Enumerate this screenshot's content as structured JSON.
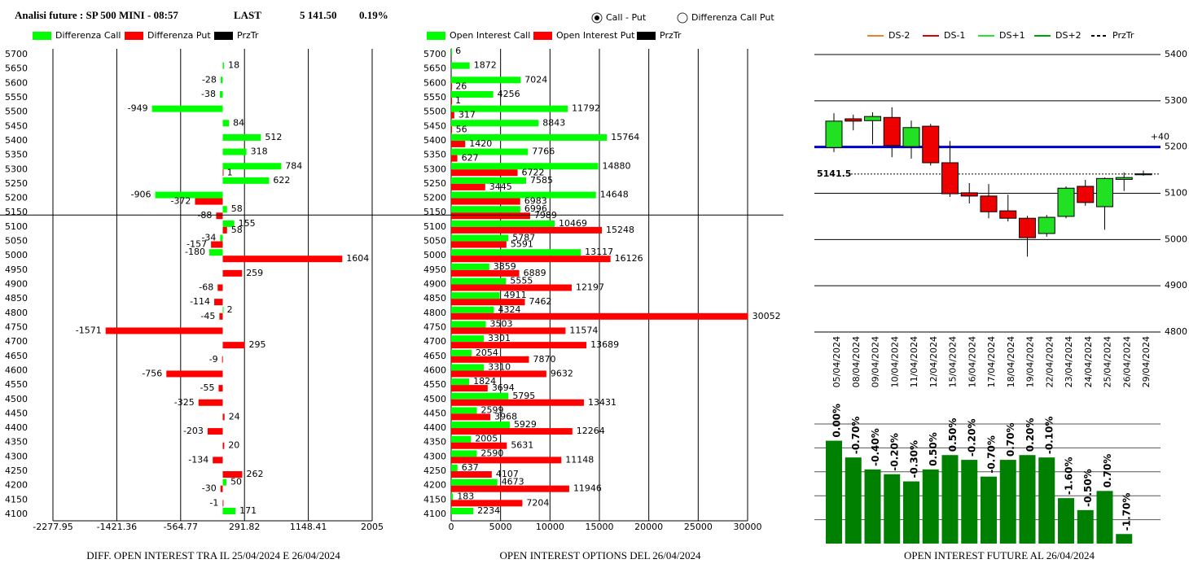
{
  "header": {
    "title": "Analisi future : SP 500 MINI - 08:57",
    "last_caption": "LAST",
    "last": {
      "value": 5141.5,
      "label": "5 141.50"
    },
    "change": "0.19%",
    "options": [
      "Call - Put",
      "Differenza Call Put"
    ],
    "selected": 0
  },
  "chart_data": [
    {
      "type": "hbar",
      "title": "DIFF. OPEN INTEREST TRA IL 25/04/2024 E 26/04/2024",
      "categories": [
        5700,
        5650,
        5600,
        5550,
        5500,
        5450,
        5400,
        5350,
        5300,
        5250,
        5200,
        5150,
        5100,
        5050,
        5000,
        4950,
        4900,
        4850,
        4800,
        4750,
        4700,
        4650,
        4600,
        4550,
        4500,
        4450,
        4400,
        4350,
        4300,
        4250,
        4200,
        4150,
        4100
      ],
      "series": [
        {
          "name": "Differenza Call",
          "color": "#00ff00",
          "values": [
            null,
            18,
            -28,
            -38,
            -949,
            84,
            512,
            318,
            784,
            622,
            -906,
            58,
            155,
            -34,
            -180,
            null,
            null,
            null,
            2,
            null,
            null,
            null,
            null,
            null,
            null,
            null,
            null,
            null,
            null,
            null,
            50,
            null,
            171
          ]
        },
        {
          "name": "Differenza Put",
          "color": "#ff0000",
          "values": [
            null,
            null,
            null,
            null,
            null,
            null,
            null,
            null,
            1,
            null,
            -372,
            -88,
            58,
            -157,
            1604,
            259,
            -68,
            -114,
            -45,
            -1571,
            295,
            -9,
            -756,
            -55,
            -325,
            24,
            -203,
            20,
            -134,
            262,
            -30,
            -1,
            null
          ]
        }
      ],
      "legend_extra": {
        "name": "PrzTr",
        "color": "#000000"
      },
      "xlim": [
        -2277.95,
        2005
      ],
      "xticks": [
        -2277.95,
        -1421.36,
        -564.77,
        291.82,
        1148.41,
        2005
      ],
      "grid": true
    },
    {
      "type": "hbar",
      "title": "OPEN INTEREST OPTIONS DEL 26/04/2024",
      "categories": [
        5700,
        5650,
        5600,
        5550,
        5500,
        5450,
        5400,
        5350,
        5300,
        5250,
        5200,
        5150,
        5100,
        5050,
        5000,
        4950,
        4900,
        4850,
        4800,
        4750,
        4700,
        4650,
        4600,
        4550,
        4500,
        4450,
        4400,
        4350,
        4300,
        4250,
        4200,
        4150,
        4100
      ],
      "series": [
        {
          "name": "Open Interest Call",
          "color": "#00ff00",
          "values": [
            6,
            1872,
            7024,
            4256,
            11792,
            8843,
            15764,
            7766,
            14880,
            7585,
            14648,
            6996,
            10469,
            5787,
            13117,
            3859,
            5555,
            4911,
            4324,
            3503,
            3301,
            2054,
            3310,
            1824,
            5795,
            2599,
            5929,
            2005,
            2590,
            637,
            4673,
            183,
            2234
          ]
        },
        {
          "name": "Open Interest Put",
          "color": "#ff0000",
          "values": [
            null,
            null,
            26,
            1,
            317,
            56,
            1420,
            627,
            6722,
            3445,
            6983,
            7989,
            15248,
            5591,
            16126,
            6889,
            12197,
            7462,
            30052,
            11574,
            13689,
            7870,
            9632,
            3694,
            13431,
            3968,
            12264,
            5631,
            11148,
            4107,
            11946,
            7204,
            null
          ]
        }
      ],
      "legend_extra": {
        "name": "PrzTr",
        "color": "#000000"
      },
      "xlim": [
        0,
        30000
      ],
      "xticks": [
        0,
        5000,
        10000,
        15000,
        20000,
        25000,
        30000
      ],
      "grid": true
    },
    {
      "type": "candlestick",
      "categories": [
        "05/04/2024",
        "08/04/2024",
        "09/04/2024",
        "10/04/2024",
        "11/04/2024",
        "12/04/2024",
        "15/04/2024",
        "16/04/2024",
        "17/04/2024",
        "18/04/2024",
        "19/04/2024",
        "22/04/2024",
        "23/04/2024",
        "24/04/2024",
        "25/04/2024",
        "26/04/2024",
        "29/04/2024"
      ],
      "open": [
        5199,
        5261,
        5257,
        5264,
        5201,
        5245,
        5166,
        5101,
        5094,
        5062,
        5046,
        5013,
        5050,
        5115,
        5071,
        5130,
        5140
      ],
      "high": [
        5273,
        5270,
        5275,
        5286,
        5257,
        5250,
        5213,
        5122,
        5120,
        5097,
        5051,
        5053,
        5115,
        5129,
        5134,
        5145,
        5149
      ],
      "low": [
        5189,
        5236,
        5206,
        5178,
        5175,
        5160,
        5092,
        5078,
        5046,
        5039,
        4963,
        5006,
        5046,
        5073,
        5021,
        5105,
        5138
      ],
      "close": [
        5256,
        5256,
        5266,
        5203,
        5242,
        5166,
        5099,
        5094,
        5060,
        5046,
        5004,
        5048,
        5111,
        5080,
        5132,
        5134,
        5142
      ],
      "up_color": "#22e022",
      "down_color": "#ee0000",
      "legend": [
        {
          "name": "DS-2",
          "color": "#f08030"
        },
        {
          "name": "DS-1",
          "color": "#e00000"
        },
        {
          "name": "DS+1",
          "color": "#30e030"
        },
        {
          "name": "DS+2",
          "color": "#00a000"
        },
        {
          "name": "PrzTr",
          "color": "#000000",
          "dashed": true
        }
      ],
      "reference": {
        "value": 5200,
        "label": "+40",
        "color": "#0000cc"
      },
      "price": 5141.5,
      "ylim": [
        4800,
        5400
      ],
      "yticks": [
        4800,
        4900,
        5000,
        5100,
        5200,
        5300,
        5400
      ],
      "grid": true
    },
    {
      "type": "bar",
      "title": "OPEN INTEREST FUTURE AL 26/04/2024",
      "values": [
        4.3,
        3.6,
        3.1,
        2.9,
        2.6,
        3.1,
        3.7,
        3.5,
        2.8,
        3.5,
        3.7,
        3.6,
        1.9,
        1.4,
        2.2,
        0.4
      ],
      "labels": [
        "0.00%",
        "-0.70%",
        "-0.40%",
        "-0.20%",
        "-0.30%",
        "0.50%",
        "0.50%",
        "-0.20%",
        "-0.70%",
        "0.70%",
        "0.20%",
        "-0.10%",
        "-1.60%",
        "-0.50%",
        "0.70%",
        "-1.70%"
      ],
      "color": "#008000",
      "ylim": [
        0,
        5
      ],
      "gridlines": [
        1,
        2,
        3,
        4,
        5
      ]
    }
  ]
}
